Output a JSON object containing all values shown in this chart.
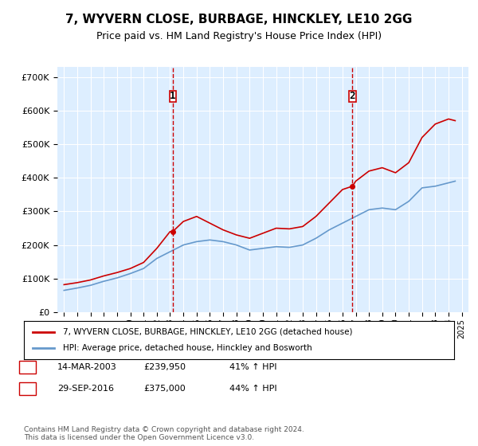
{
  "title": "7, WYVERN CLOSE, BURBAGE, HINCKLEY, LE10 2GG",
  "subtitle": "Price paid vs. HM Land Registry's House Price Index (HPI)",
  "legend_line1": "7, WYVERN CLOSE, BURBAGE, HINCKLEY, LE10 2GG (detached house)",
  "legend_line2": "HPI: Average price, detached house, Hinckley and Bosworth",
  "footnote": "Contains HM Land Registry data © Crown copyright and database right 2024.\nThis data is licensed under the Open Government Licence v3.0.",
  "sale1_label": "1",
  "sale1_date": "14-MAR-2003",
  "sale1_price": "£239,950",
  "sale1_hpi": "41% ↑ HPI",
  "sale2_label": "2",
  "sale2_date": "29-SEP-2016",
  "sale2_price": "£375,000",
  "sale2_hpi": "44% ↑ HPI",
  "sale1_x": 2003.2,
  "sale1_y": 239950,
  "sale2_x": 2016.75,
  "sale2_y": 375000,
  "red_color": "#cc0000",
  "blue_color": "#6699cc",
  "background_color": "#ddeeff",
  "ylim": [
    0,
    730000
  ],
  "xlim": [
    1994.5,
    2025.5
  ],
  "red_x": [
    1995,
    1996,
    1997,
    1998,
    1999,
    2000,
    2001,
    2002,
    2003,
    2003.2,
    2004,
    2005,
    2006,
    2007,
    2008,
    2009,
    2010,
    2011,
    2012,
    2013,
    2014,
    2015,
    2016,
    2016.75,
    2017,
    2018,
    2019,
    2020,
    2021,
    2022,
    2023,
    2024,
    2024.5
  ],
  "red_y": [
    82000,
    88000,
    96000,
    108000,
    118000,
    130000,
    148000,
    190000,
    240000,
    239950,
    270000,
    285000,
    265000,
    245000,
    230000,
    220000,
    235000,
    250000,
    248000,
    255000,
    285000,
    325000,
    365000,
    375000,
    390000,
    420000,
    430000,
    415000,
    445000,
    520000,
    560000,
    575000,
    570000
  ],
  "blue_x": [
    1995,
    1996,
    1997,
    1998,
    1999,
    2000,
    2001,
    2002,
    2003,
    2004,
    2005,
    2006,
    2007,
    2008,
    2009,
    2010,
    2011,
    2012,
    2013,
    2014,
    2015,
    2016,
    2017,
    2018,
    2019,
    2020,
    2021,
    2022,
    2023,
    2024,
    2024.5
  ],
  "blue_y": [
    65000,
    72000,
    80000,
    92000,
    102000,
    115000,
    130000,
    160000,
    180000,
    200000,
    210000,
    215000,
    210000,
    200000,
    185000,
    190000,
    195000,
    193000,
    200000,
    220000,
    245000,
    265000,
    285000,
    305000,
    310000,
    305000,
    330000,
    370000,
    375000,
    385000,
    390000
  ]
}
